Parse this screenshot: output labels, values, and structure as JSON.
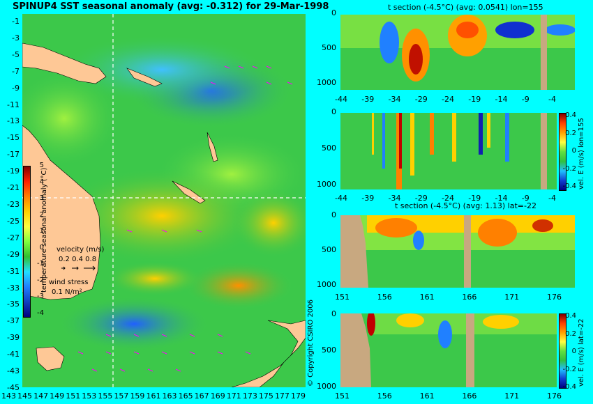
{
  "map": {
    "title": "SPINUP4 SST seasonal anomaly (avg: -0.312) for 29-Mar-1998",
    "lat_ticks": [
      "-1",
      "-3",
      "-5",
      "-7",
      "-9",
      "-11",
      "-13",
      "-15",
      "-17",
      "-19",
      "-21",
      "-23",
      "-25",
      "-27",
      "-29",
      "-31",
      "-33",
      "-35",
      "-37",
      "-39",
      "-41",
      "-43",
      "-45"
    ],
    "lon_ticks": [
      "143",
      "145",
      "147",
      "149",
      "151",
      "153",
      "155",
      "157",
      "159",
      "161",
      "163",
      "165",
      "167",
      "169",
      "171",
      "173",
      "175",
      "177",
      "179"
    ],
    "colorbar_label": "temperature seasonal anomaly (°C)",
    "colorbar_ticks": [
      "5",
      "4",
      "3",
      "2",
      "1",
      "0",
      "-1",
      "-2",
      "-3",
      "-4"
    ],
    "velocity_label": "velocity (m/s)",
    "velocity_scale": "0.2 0.4 0.8",
    "wind_label": "wind stress",
    "wind_scale": "0.1 N/m²",
    "copyright": "© Copyright CSIRO 2006"
  },
  "chart_data": [
    {
      "type": "heatmap",
      "title": "t section (-4.5°C) (avg: 0.0541) lon=155",
      "x_ticks": [
        "-44",
        "-39",
        "-34",
        "-29",
        "-24",
        "-19",
        "-14",
        "-9",
        "-4"
      ],
      "y_ticks": [
        "0",
        "500",
        "1000"
      ],
      "colorbar": false
    },
    {
      "type": "heatmap",
      "title": "",
      "x_ticks": [
        "-44",
        "-39",
        "-34",
        "-29",
        "-24",
        "-19",
        "-14",
        "-9",
        "-4"
      ],
      "y_ticks": [
        "0",
        "500",
        "1000"
      ],
      "colorbar_label": "vel. E (m/s) lon=155",
      "colorbar_ticks": [
        "0.4",
        "0.2",
        "0",
        "-0.2",
        "-0.4"
      ]
    },
    {
      "type": "heatmap",
      "title": "t section (-4.5°C) (avg: 1.13) lat=-22",
      "x_ticks": [
        "151",
        "156",
        "161",
        "166",
        "171",
        "176"
      ],
      "y_ticks": [
        "0",
        "500",
        "1000"
      ],
      "colorbar": false
    },
    {
      "type": "heatmap",
      "title": "",
      "x_ticks": [
        "151",
        "156",
        "161",
        "166",
        "171",
        "176"
      ],
      "y_ticks": [
        "0",
        "500",
        "1000"
      ],
      "colorbar_label": "vel. E (m/s) lat=-22",
      "colorbar_ticks": [
        "0.4",
        "0.2",
        "0",
        "-0.2",
        "-0.4"
      ]
    }
  ],
  "colors": {
    "background": "#00ffff",
    "land": "#fec896",
    "ocean_base": "#3cc84a",
    "warm": "#ffd800",
    "hot": "#ff4000",
    "cool": "#2880ff",
    "cold": "#1020b0",
    "vector": "#ff00ff"
  }
}
